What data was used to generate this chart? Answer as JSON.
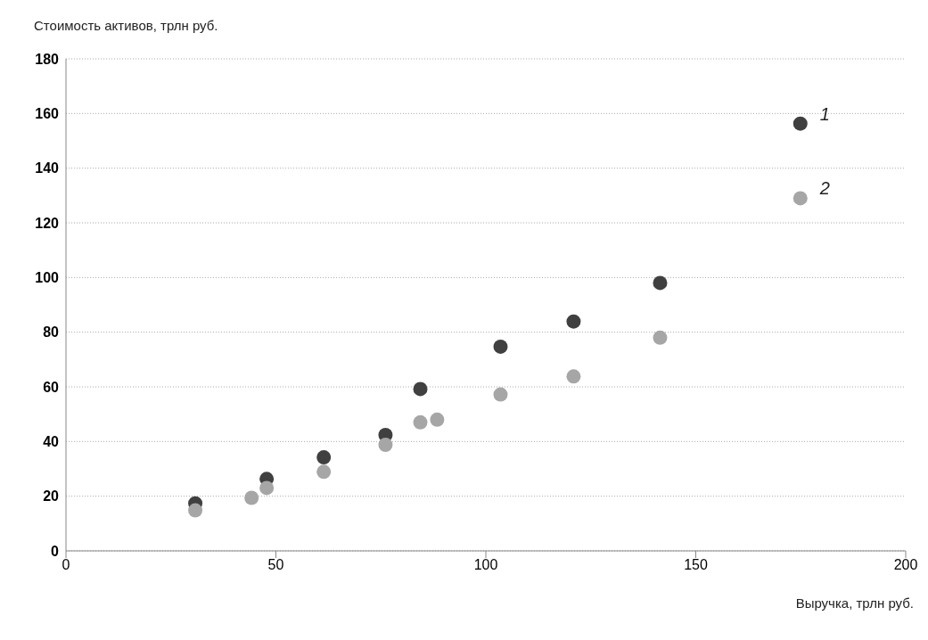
{
  "chart_data": {
    "type": "scatter",
    "ylabel": "Стоимость активов, трлн руб.",
    "xlabel": "Выручка, трлн руб.",
    "series": [
      {
        "name": "1",
        "color": "#404040",
        "x": [
          30.8,
          47.8,
          61.4,
          76.1,
          84.4,
          103.5,
          120.9,
          141.5,
          174.9
        ],
        "values": [
          17.4,
          26.3,
          34.2,
          42.4,
          59.2,
          74.7,
          83.9,
          98,
          156.3
        ]
      },
      {
        "name": "2",
        "color": "#a6a6a6",
        "x": [
          30.8,
          44.2,
          47.8,
          61.4,
          76.1,
          84.4,
          88.4,
          103.5,
          120.9,
          141.5,
          174.9
        ],
        "values": [
          14.8,
          19.4,
          23,
          28.9,
          38.8,
          47,
          48,
          57.2,
          63.8,
          78,
          129
        ]
      }
    ],
    "xlim": [
      0,
      200
    ],
    "xticks": [
      0,
      50,
      100,
      150,
      200
    ],
    "ylim": [
      0,
      180
    ],
    "yticks": [
      0,
      20,
      40,
      60,
      80,
      100,
      120,
      140,
      160,
      180
    ],
    "grid": "y",
    "marker": "circle",
    "legend": false
  }
}
